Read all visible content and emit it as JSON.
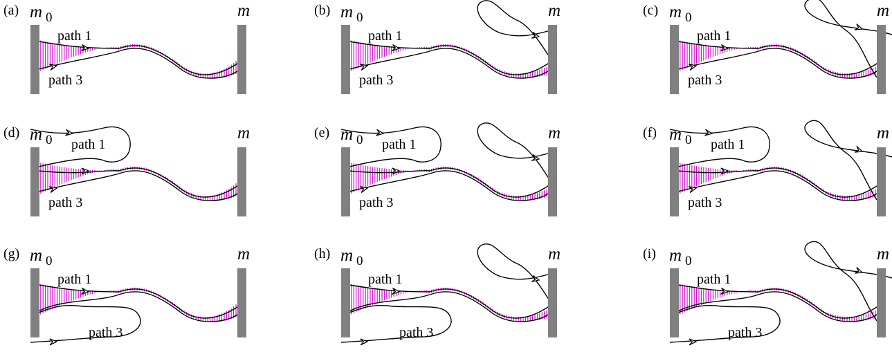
{
  "panels": [
    {
      "label": "(a)",
      "mirror0": "m",
      "mirror0_sub": "0",
      "mirror": "m",
      "path1": "path 1",
      "path3": "path 3",
      "variant": "a"
    },
    {
      "label": "(b)",
      "mirror0": "m",
      "mirror0_sub": "0",
      "mirror": "m",
      "path1": "path 1",
      "path3": "path 3",
      "variant": "b"
    },
    {
      "label": "(c)",
      "mirror0": "m",
      "mirror0_sub": "0",
      "mirror": "m",
      "path1": "path 1",
      "path3": "path 3",
      "variant": "c"
    },
    {
      "label": "(d)",
      "mirror0": "m",
      "mirror0_sub": "0",
      "mirror": "m",
      "path1": "path 1",
      "path3": "path 3",
      "variant": "d"
    },
    {
      "label": "(e)",
      "mirror0": "m",
      "mirror0_sub": "0",
      "mirror": "m",
      "path1": "path 1",
      "path3": "path 3",
      "variant": "e"
    },
    {
      "label": "(f)",
      "mirror0": "m",
      "mirror0_sub": "0",
      "mirror": "m",
      "path1": "path 1",
      "path3": "path 3",
      "variant": "f"
    },
    {
      "label": "(g)",
      "mirror0": "m",
      "mirror0_sub": "0",
      "mirror": "m",
      "path1": "path 1",
      "path3": "path 3",
      "variant": "g"
    },
    {
      "label": "(h)",
      "mirror0": "m",
      "mirror0_sub": "0",
      "mirror": "m",
      "path1": "path 1",
      "path3": "path 3",
      "variant": "h"
    },
    {
      "label": "(i)",
      "mirror0": "m",
      "mirror0_sub": "0",
      "mirror": "m",
      "path1": "path 1",
      "path3": "path 3",
      "variant": "i"
    }
  ],
  "colors": {
    "mirror": "#808080",
    "hatch": "#cc00cc",
    "stroke": "#000000",
    "background": "#ffffff"
  }
}
